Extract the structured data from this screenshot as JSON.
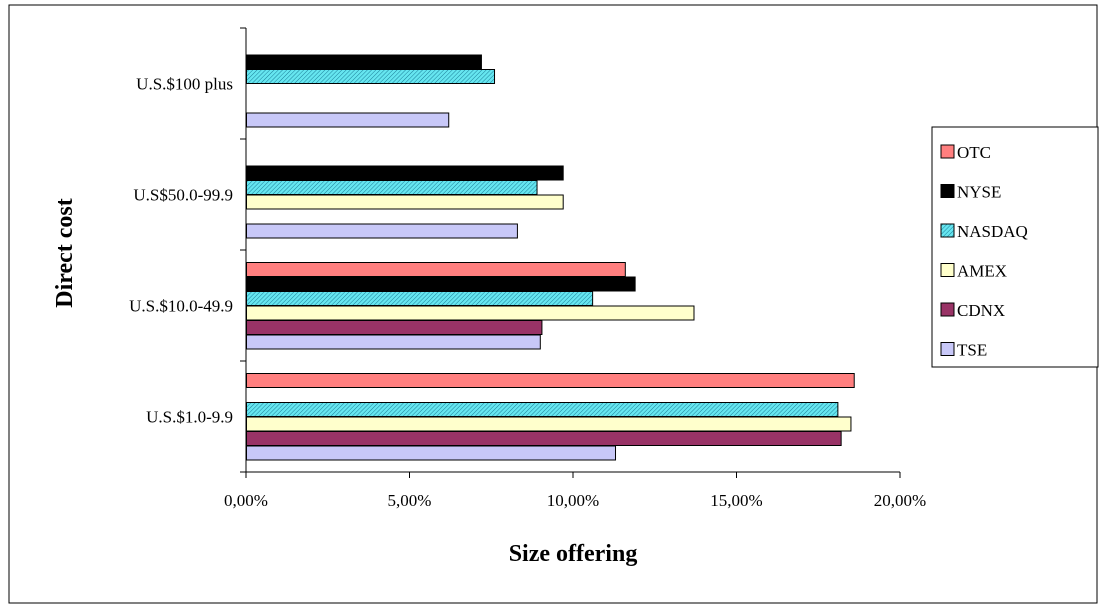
{
  "chart_data": {
    "type": "bar",
    "orientation": "horizontal",
    "title": "",
    "xlabel": "Size offering",
    "ylabel": "Direct cost",
    "xlim": [
      0,
      20
    ],
    "x_ticks": [
      {
        "value": 0,
        "label": "0,00%"
      },
      {
        "value": 5,
        "label": "5,00%"
      },
      {
        "value": 10,
        "label": "10,00%"
      },
      {
        "value": 15,
        "label": "15,00%"
      },
      {
        "value": 20,
        "label": "20,00%"
      }
    ],
    "categories": [
      "U.S.$1.0-9.9",
      "U.S.$10.0-49.9",
      "U.S$50.0-99.9",
      "U.S.$100 plus"
    ],
    "series": [
      {
        "name": "TSE",
        "color": "#c8c8f8",
        "pattern": "none",
        "values": [
          11.3,
          9.0,
          8.3,
          6.2
        ]
      },
      {
        "name": "CDNX",
        "color": "#993366",
        "pattern": "none",
        "values": [
          18.2,
          9.05,
          null,
          null
        ]
      },
      {
        "name": "AMEX",
        "color": "#ffffcc",
        "pattern": "none",
        "values": [
          18.5,
          13.7,
          9.7,
          null
        ]
      },
      {
        "name": "NASDAQ",
        "color": "#66e6f0",
        "pattern": "hatch",
        "values": [
          18.1,
          10.6,
          8.9,
          7.6
        ]
      },
      {
        "name": "NYSE",
        "color": "#000000",
        "pattern": "none",
        "values": [
          null,
          11.9,
          9.7,
          7.2
        ]
      },
      {
        "name": "OTC",
        "color": "#ff7f7f",
        "pattern": "none",
        "values": [
          18.6,
          11.6,
          null,
          null
        ]
      }
    ],
    "legend_order": [
      "OTC",
      "NYSE",
      "NASDAQ",
      "AMEX",
      "CDNX",
      "TSE"
    ],
    "legend_position": "right",
    "grid": false
  }
}
